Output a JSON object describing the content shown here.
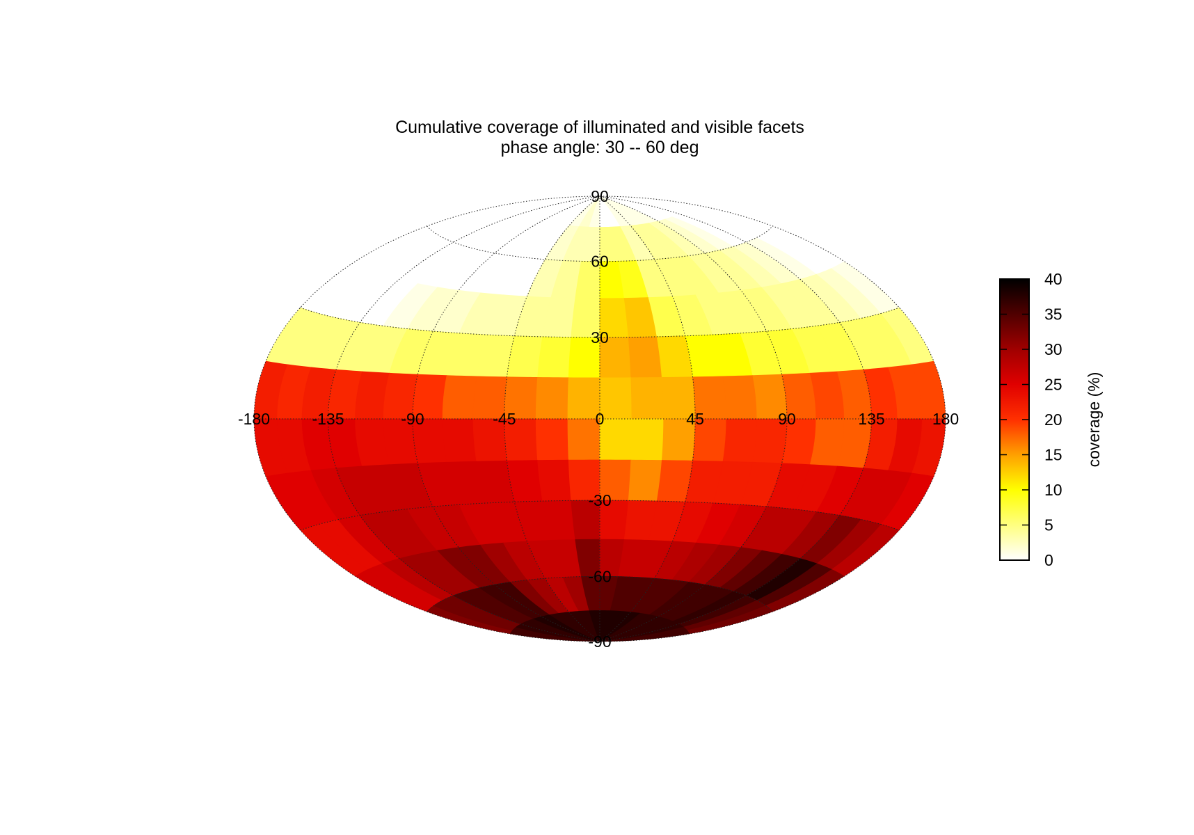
{
  "chart_data": {
    "type": "heatmap",
    "projection": "hammer-aitoff",
    "title": "Cumulative coverage of illuminated and visible facets",
    "subtitle": "phase angle:  30 --  60 deg",
    "x_ticks": [
      "-180",
      "-135",
      "-90",
      "-45",
      "0",
      "45",
      "90",
      "135",
      "180"
    ],
    "x_tick_values": [
      -180,
      -135,
      -90,
      -45,
      0,
      45,
      90,
      135,
      180
    ],
    "y_ticks": [
      "90",
      "60",
      "30",
      "-30",
      "-60",
      "-90"
    ],
    "y_tick_values": [
      90,
      60,
      30,
      -30,
      -60,
      -90
    ],
    "meridians": [
      -180,
      -135,
      -90,
      -45,
      0,
      45,
      90,
      135,
      180
    ],
    "parallels": [
      60,
      30,
      0,
      -30,
      -60
    ],
    "colorbar": {
      "label": "coverage (%)",
      "min": 0,
      "max": 40,
      "ticks": [
        "0",
        "5",
        "10",
        "15",
        "20",
        "25",
        "30",
        "35",
        "40"
      ],
      "tick_values": [
        0,
        5,
        10,
        15,
        20,
        25,
        30,
        35,
        40
      ],
      "colormap": "hot (reversed)",
      "colors": [
        "#ffffff",
        "#ffff80",
        "#ffff00",
        "#ffa000",
        "#ff3000",
        "#e00000",
        "#a00000",
        "#500000",
        "#000000"
      ]
    },
    "grid": {
      "lon_bin_deg": 15,
      "lat_bin_deg": 15,
      "lon_centers": [
        -172.5,
        -157.5,
        -142.5,
        -127.5,
        -112.5,
        -97.5,
        -82.5,
        -67.5,
        -52.5,
        -37.5,
        -22.5,
        -7.5,
        7.5,
        22.5,
        37.5,
        52.5,
        67.5,
        82.5,
        97.5,
        112.5,
        127.5,
        142.5,
        157.5,
        172.5
      ],
      "lat_centers": [
        82.5,
        67.5,
        52.5,
        37.5,
        22.5,
        7.5,
        -7.5,
        -22.5,
        -37.5,
        -52.5,
        -67.5,
        -82.5
      ],
      "values": [
        [
          0,
          0,
          0,
          0,
          0,
          0,
          0,
          0,
          0,
          1,
          2,
          1,
          0,
          0,
          1,
          1,
          1,
          1,
          0,
          0,
          0,
          0,
          0,
          0
        ],
        [
          0,
          0,
          0,
          0,
          0,
          0,
          0,
          0,
          0,
          2,
          3,
          3,
          5,
          5,
          3,
          4,
          4,
          3,
          2,
          1,
          0,
          0,
          0,
          0
        ],
        [
          0,
          0,
          0,
          0,
          0,
          0,
          0,
          0,
          0,
          3,
          4,
          6,
          10,
          9,
          5,
          5,
          5,
          4,
          4,
          3,
          2,
          1,
          0,
          0
        ],
        [
          0,
          0,
          0,
          0,
          1,
          2,
          2,
          3,
          3,
          4,
          4,
          6,
          12,
          13,
          7,
          6,
          5,
          5,
          5,
          4,
          4,
          3,
          2,
          1
        ],
        [
          5,
          5,
          5,
          5,
          5,
          6,
          6,
          6,
          6,
          7,
          8,
          10,
          14,
          15,
          12,
          10,
          10,
          8,
          8,
          7,
          7,
          6,
          6,
          5
        ],
        [
          22,
          21,
          22,
          21,
          22,
          21,
          20,
          18,
          18,
          17,
          16,
          14,
          13,
          14,
          14,
          17,
          17,
          16,
          18,
          19,
          18,
          20,
          19,
          19
        ],
        [
          24,
          24,
          25,
          25,
          24,
          24,
          24,
          24,
          23,
          22,
          20,
          17,
          12,
          12,
          15,
          19,
          21,
          21,
          20,
          18,
          18,
          22,
          24,
          23
        ],
        [
          25,
          25,
          26,
          27,
          27,
          27,
          26,
          26,
          26,
          25,
          24,
          21,
          18,
          16,
          19,
          22,
          22,
          22,
          24,
          24,
          25,
          26,
          26,
          25
        ],
        [
          24,
          24,
          26,
          28,
          28,
          27,
          27,
          26,
          26,
          26,
          26,
          28,
          24,
          23,
          23,
          24,
          25,
          26,
          28,
          28,
          30,
          32,
          30,
          28
        ],
        [
          26,
          26,
          28,
          30,
          30,
          32,
          32,
          30,
          28,
          27,
          27,
          32,
          28,
          27,
          27,
          28,
          29,
          30,
          32,
          34,
          36,
          38,
          35,
          32
        ],
        [
          32,
          33,
          33,
          35,
          35,
          36,
          36,
          32,
          30,
          28,
          30,
          34,
          34,
          35,
          35,
          35,
          35,
          36,
          36,
          36,
          37,
          36,
          34,
          33
        ],
        [
          36,
          36,
          37,
          37,
          37,
          38,
          38,
          37,
          37,
          37,
          37,
          38,
          38,
          38,
          38,
          38,
          37,
          37,
          37,
          37,
          37,
          37,
          36,
          36
        ]
      ]
    }
  }
}
